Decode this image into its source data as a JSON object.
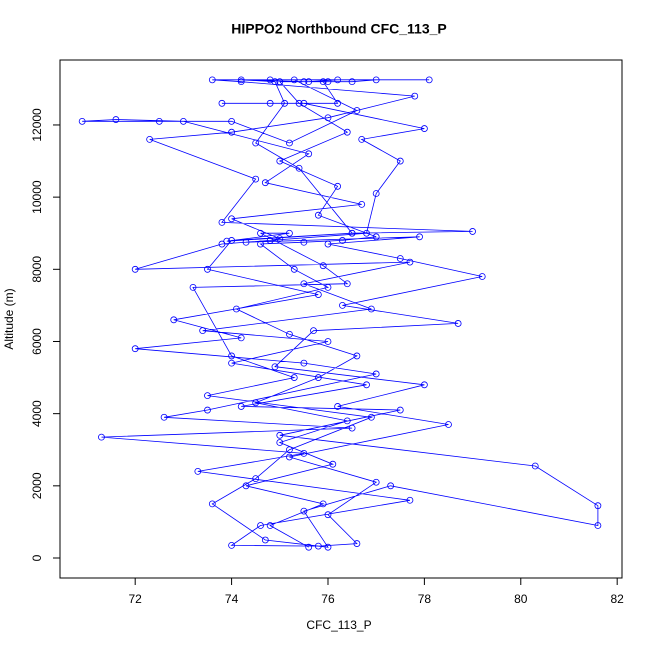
{
  "chart_data": {
    "type": "line",
    "title": "HIPPO2 Northbound CFC_113_P",
    "x_label": "CFC_113_P",
    "y_label": "Altitude (m)",
    "color": "#0000ff",
    "x": [
      75.6,
      74.8,
      75.9,
      74.3,
      76.1,
      75.0,
      76.4,
      74.5,
      75.8,
      76.6,
      75.2,
      74.1,
      76.0,
      75.3,
      74.6,
      75.5,
      76.3,
      77.0,
      75.8,
      76.2,
      75.0,
      76.4,
      75.4,
      75.0,
      75.6,
      76.2,
      74.8,
      73.6,
      74.2,
      77.8,
      76.0,
      74.0,
      72.3,
      74.5,
      73.8,
      79.0,
      76.5,
      74.0,
      73.5,
      75.8,
      72.8,
      74.2,
      72.0,
      75.5,
      77.0,
      73.5,
      72.6,
      76.5,
      71.3,
      75.5,
      73.3,
      77.7,
      74.6,
      74.0,
      75.8,
      76.6,
      76.0,
      77.0,
      75.2,
      78.5,
      76.2,
      78.0,
      74.9,
      75.7,
      78.7,
      76.3,
      79.2,
      77.5,
      76.0,
      77.9,
      74.3,
      76.8,
      77.0,
      77.5,
      76.7,
      78.0,
      75.5,
      74.8,
      73.8,
      76.2,
      75.9,
      76.5,
      77.0,
      78.1,
      75.3,
      76.6,
      75.2,
      74.0,
      72.5,
      70.9,
      71.6,
      73.0,
      75.6,
      74.7,
      76.7,
      74.0,
      75.0,
      74.8,
      73.8,
      72.0,
      77.7,
      75.5,
      76.9,
      73.4,
      76.0,
      74.0,
      76.8,
      74.2,
      77.5,
      75.0,
      80.3,
      81.6,
      81.6,
      77.3,
      75.5,
      76.0,
      74.7,
      73.6,
      74.5,
      75.2,
      76.9,
      73.5,
      75.3,
      74.0,
      73.2,
      76.4,
      75.9,
      74.6,
      75.2,
      73.9,
      76.5,
      75.4,
      74.5,
      75.1,
      74.9,
      74.2,
      75.5,
      76.0
    ],
    "values": [
      300,
      900,
      1500,
      2000,
      2600,
      3200,
      3800,
      4300,
      5000,
      5600,
      6200,
      6900,
      7500,
      8000,
      8700,
      8750,
      8800,
      8900,
      9500,
      10300,
      11000,
      11800,
      12600,
      13200,
      13200,
      13250,
      13250,
      13250,
      13200,
      12800,
      12200,
      11800,
      11600,
      10500,
      9300,
      9050,
      9000,
      8800,
      8000,
      7300,
      6600,
      6100,
      5800,
      5400,
      5100,
      4100,
      3900,
      3600,
      3350,
      2900,
      2400,
      1600,
      900,
      350,
      330,
      400,
      1200,
      2100,
      2800,
      3700,
      4200,
      4800,
      5300,
      6300,
      6500,
      7000,
      7800,
      8300,
      8700,
      8900,
      8750,
      9000,
      10100,
      11000,
      11600,
      11900,
      12600,
      12600,
      12600,
      12600,
      13200,
      13200,
      13250,
      13250,
      13250,
      12400,
      11500,
      12100,
      12100,
      12100,
      12150,
      12100,
      11200,
      10400,
      9800,
      9400,
      8850,
      8800,
      8700,
      8000,
      8200,
      7600,
      6900,
      6300,
      6000,
      5400,
      4800,
      4200,
      4100,
      3400,
      2550,
      1450,
      900,
      2000,
      1300,
      300,
      500,
      1500,
      2200,
      3000,
      3900,
      4500,
      5000,
      5600,
      7500,
      7600,
      8100,
      9000,
      9000,
      8780,
      9000,
      10800,
      11500,
      12600,
      13200,
      13250,
      13200,
      13200
    ],
    "xlim": [
      70.44,
      82.1
    ],
    "ylim": [
      -554,
      13800
    ],
    "xticks": [
      72,
      74,
      76,
      78,
      80,
      82
    ],
    "yticks": [
      0,
      2000,
      4000,
      6000,
      8000,
      10000,
      12000
    ]
  }
}
